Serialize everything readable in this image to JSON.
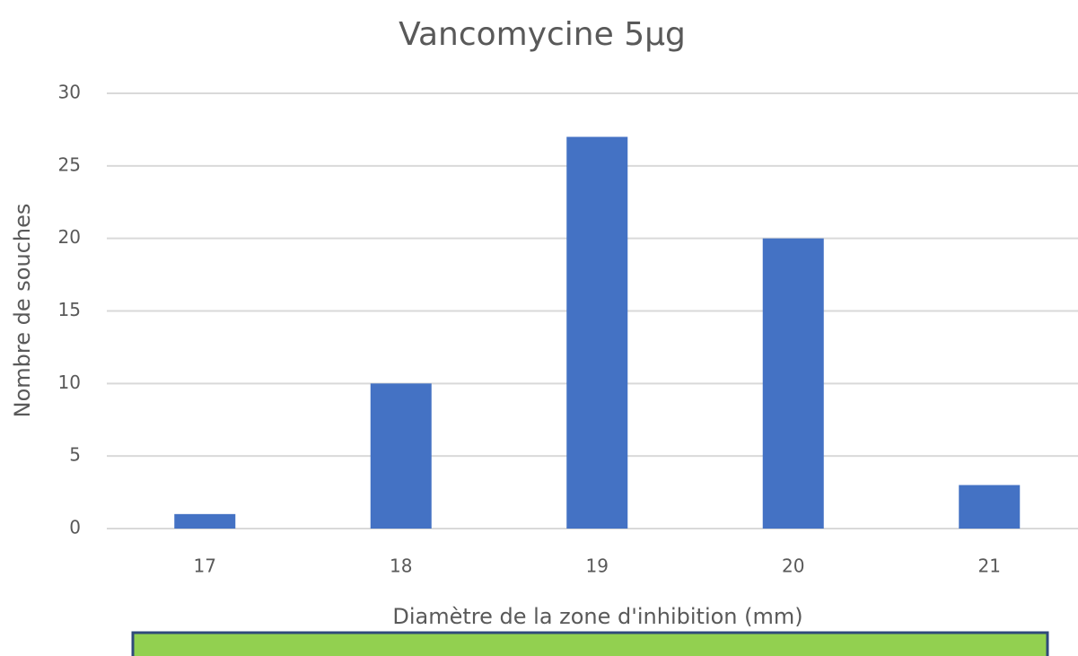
{
  "chart_data": {
    "type": "bar",
    "title": "Vancomycine 5µg",
    "x_label": "Diamètre de la zone d'inhibition (mm)",
    "y_label": "Nombre de souches",
    "categories": [
      "17",
      "18",
      "19",
      "20",
      "21"
    ],
    "values": [
      1,
      10,
      27,
      20,
      3
    ],
    "color": "#4472c4",
    "ylim": [
      0,
      30
    ],
    "yticks": [
      0,
      5,
      10,
      15,
      20,
      25,
      30
    ],
    "grid": true
  }
}
